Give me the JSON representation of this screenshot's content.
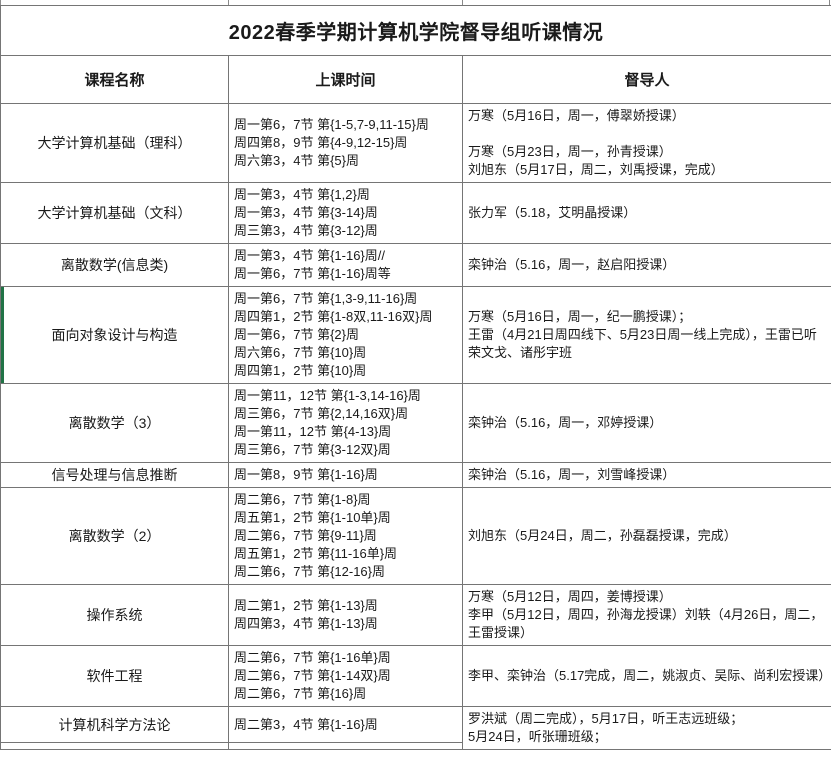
{
  "title": "2022春季学期计算机学院督导组听课情况",
  "accent_colors": {
    "grid_border": "#757575",
    "selection_marker_green": "#217346",
    "text": "#1a1a1a"
  },
  "table": {
    "headers": [
      "课程名称",
      "上课时间",
      "督导人"
    ],
    "rows": [
      {
        "course": "大学计算机基础（理科）",
        "time": "周一第6，7节 第{1-5,7-9,11-15}周\n周四第8，9节 第{4-9,12-15}周\n周六第3，4节 第{5}周",
        "supervisor": "万寒（5月16日，周一，傅翠娇授课）\n\n万寒（5月23日，周一，孙青授课）\n刘旭东（5月17日，周二，刘禹授课，完成）",
        "green_marker": false
      },
      {
        "course": "大学计算机基础（文科）",
        "time": "周一第3，4节 第{1,2}周\n周一第3，4节 第{3-14}周\n周三第3，4节 第{3-12}周",
        "supervisor": "张力军（5.18，艾明晶授课）",
        "green_marker": false
      },
      {
        "course": "离散数学(信息类)",
        "time": "周一第3，4节 第{1-16}周//\n周一第6，7节 第{1-16}周等",
        "supervisor": "栾钟治（5.16，周一，赵启阳授课）",
        "green_marker": false
      },
      {
        "course": "面向对象设计与构造",
        "time": "周一第6，7节 第{1,3-9,11-16}周\n周四第1，2节 第{1-8双,11-16双}周\n周一第6，7节 第{2}周\n周六第6，7节 第{10}周\n周四第1，2节 第{10}周",
        "supervisor": "万寒（5月16日，周一，纪一鹏授课）；\n王雷（4月21日周四线下、5月23日周一线上完成），王雷已听荣文戈、诸彤宇班",
        "green_marker": true
      },
      {
        "course": "离散数学（3）",
        "time": "周一第11，12节 第{1-3,14-16}周\n周三第6，7节 第{2,14,16双}周\n周一第11，12节 第{4-13}周\n周三第6，7节 第{3-12双}周",
        "supervisor": "栾钟治（5.16，周一，邓婷授课）",
        "green_marker": false
      },
      {
        "course": "信号处理与信息推断",
        "time": "周一第8，9节 第{1-16}周",
        "supervisor": "栾钟治（5.16，周一，刘雪峰授课）",
        "green_marker": false
      },
      {
        "course": "离散数学（2）",
        "time": "周二第6，7节 第{1-8}周\n周五第1，2节 第{1-10单}周\n周二第6，7节 第{9-11}周\n周五第1，2节 第{11-16单}周\n周二第6，7节 第{12-16}周",
        "supervisor": "刘旭东（5月24日，周二，孙磊磊授课，完成）",
        "green_marker": false
      },
      {
        "course": "操作系统",
        "time": "周二第1，2节 第{1-13}周\n周四第3，4节 第{1-13}周",
        "supervisor": "万寒（5月12日，周四，姜博授课）\n李甲（5月12日，周四，孙海龙授课）刘轶（4月26日，周二，王雷授课）",
        "green_marker": false
      },
      {
        "course": "软件工程",
        "time": "周二第6，7节 第{1-16单}周\n周二第6，7节 第{1-14双}周\n周二第6，7节 第{16}周",
        "supervisor": "李甲、栾钟治（5.17完成，周二，姚淑贞、吴际、尚利宏授课）",
        "green_marker": false
      },
      {
        "course": "计算机科学方法论",
        "time": "周二第3，4节 第{1-16}周",
        "supervisor": "罗洪斌（周二完成），5月17日，听王志远班级；\n5月24日，听张珊班级；",
        "green_marker": false
      }
    ]
  }
}
